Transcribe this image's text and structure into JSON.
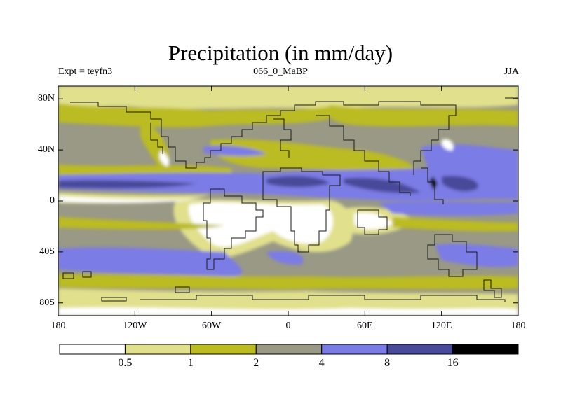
{
  "title": "Precipitation (in mm/day)",
  "left_label": "Expt = teyfn3",
  "center_label": "066_0_MaBP",
  "right_label": "JJA",
  "lat_ticks": [
    "80N",
    "40N",
    "0",
    "40S",
    "80S"
  ],
  "lat_values": [
    80,
    40,
    0,
    -40,
    -80
  ],
  "lon_ticks": [
    "180",
    "120W",
    "60W",
    "0",
    "60E",
    "120E",
    "180"
  ],
  "lon_values": [
    -180,
    -120,
    -60,
    0,
    60,
    120,
    180
  ],
  "colorbar": {
    "levels": [
      "0.5",
      "1",
      "2",
      "4",
      "8",
      "16"
    ],
    "colors": [
      "#ffffff",
      "#e1e08c",
      "#bbbb22",
      "#999985",
      "#7b7be6",
      "#4a4a9a",
      "#000000"
    ]
  }
}
